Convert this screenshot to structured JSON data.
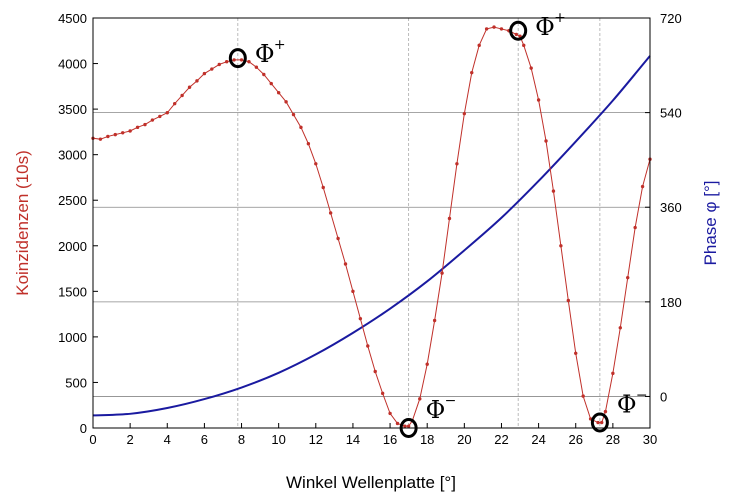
{
  "chart_data": {
    "type": "line",
    "xlabel": "Winkel Wellenplatte [°]",
    "ylabel": "Koinzidenzen (10s)",
    "y2label": "Phase φ [°]",
    "xlim": [
      0,
      30
    ],
    "ylim": [
      0,
      4500
    ],
    "y2lim": [
      -60,
      720
    ],
    "xticks": [
      0,
      2,
      4,
      6,
      8,
      10,
      12,
      14,
      16,
      18,
      20,
      22,
      24,
      26,
      28,
      30
    ],
    "yticks": [
      0,
      500,
      1000,
      1500,
      2000,
      2500,
      3000,
      3500,
      4000,
      4500
    ],
    "y2ticks": [
      0,
      180,
      360,
      540,
      720
    ],
    "colors": {
      "counts": "#c0302a",
      "phase": "#1a1aa0"
    },
    "series": [
      {
        "axis": "left",
        "marker": "dot",
        "x": [
          0,
          0.4,
          0.8,
          1.2,
          1.6,
          2,
          2.4,
          2.8,
          3.2,
          3.6,
          4,
          4.4,
          4.8,
          5.2,
          5.6,
          6,
          6.4,
          6.8,
          7.2,
          7.6,
          8,
          8.4,
          8.8,
          9.2,
          9.6,
          10,
          10.4,
          10.8,
          11.2,
          11.6,
          12,
          12.4,
          12.8,
          13.2,
          13.6,
          14,
          14.4,
          14.8,
          15.2,
          15.6,
          16,
          16.4,
          16.8,
          17,
          17.2,
          17.6,
          18,
          18.4,
          18.8,
          19.2,
          19.6,
          20,
          20.4,
          20.8,
          21.2,
          21.6,
          22,
          22.4,
          22.8,
          23,
          23.2,
          23.6,
          24,
          24.4,
          24.8,
          25.2,
          25.6,
          26,
          26.4,
          26.8,
          27.2,
          27.4,
          27.6,
          28,
          28.4,
          28.8,
          29.2,
          29.6,
          30
        ],
        "values": [
          3180,
          3170,
          3200,
          3220,
          3240,
          3260,
          3300,
          3330,
          3380,
          3420,
          3460,
          3560,
          3650,
          3740,
          3810,
          3890,
          3940,
          3990,
          4020,
          4040,
          4040,
          4020,
          3960,
          3880,
          3780,
          3680,
          3580,
          3440,
          3300,
          3120,
          2900,
          2640,
          2360,
          2080,
          1800,
          1500,
          1200,
          900,
          620,
          380,
          160,
          50,
          20,
          20,
          80,
          320,
          700,
          1180,
          1700,
          2300,
          2900,
          3450,
          3900,
          4200,
          4380,
          4400,
          4380,
          4360,
          4320,
          4300,
          4200,
          3950,
          3600,
          3150,
          2600,
          2000,
          1400,
          820,
          350,
          100,
          60,
          60,
          180,
          600,
          1100,
          1650,
          2200,
          2650,
          2950
        ]
      },
      {
        "axis": "right",
        "x": [
          0,
          2,
          4,
          6,
          8,
          10,
          12,
          14,
          16,
          18,
          20,
          22,
          24,
          26,
          28,
          30
        ],
        "values": [
          -36,
          -33,
          -22,
          -5,
          17,
          45,
          80,
          121,
          167,
          219,
          278,
          340,
          410,
          485,
          563,
          648
        ]
      }
    ],
    "annotations": [
      {
        "text": "Φ",
        "sup": "+",
        "x": 7.8,
        "y": 4060
      },
      {
        "text": "Φ",
        "sup": "+",
        "x": 22.9,
        "y": 4360
      },
      {
        "text": "Φ",
        "sup": "−",
        "x": 17.0,
        "y": 0
      },
      {
        "text": "Φ",
        "sup": "−",
        "x": 27.3,
        "y": 60
      }
    ],
    "reference_lines": {
      "vertical_x": [
        7.8,
        17.0,
        22.9,
        27.3
      ],
      "horizontal_y2": [
        0,
        180,
        360,
        540
      ]
    }
  }
}
